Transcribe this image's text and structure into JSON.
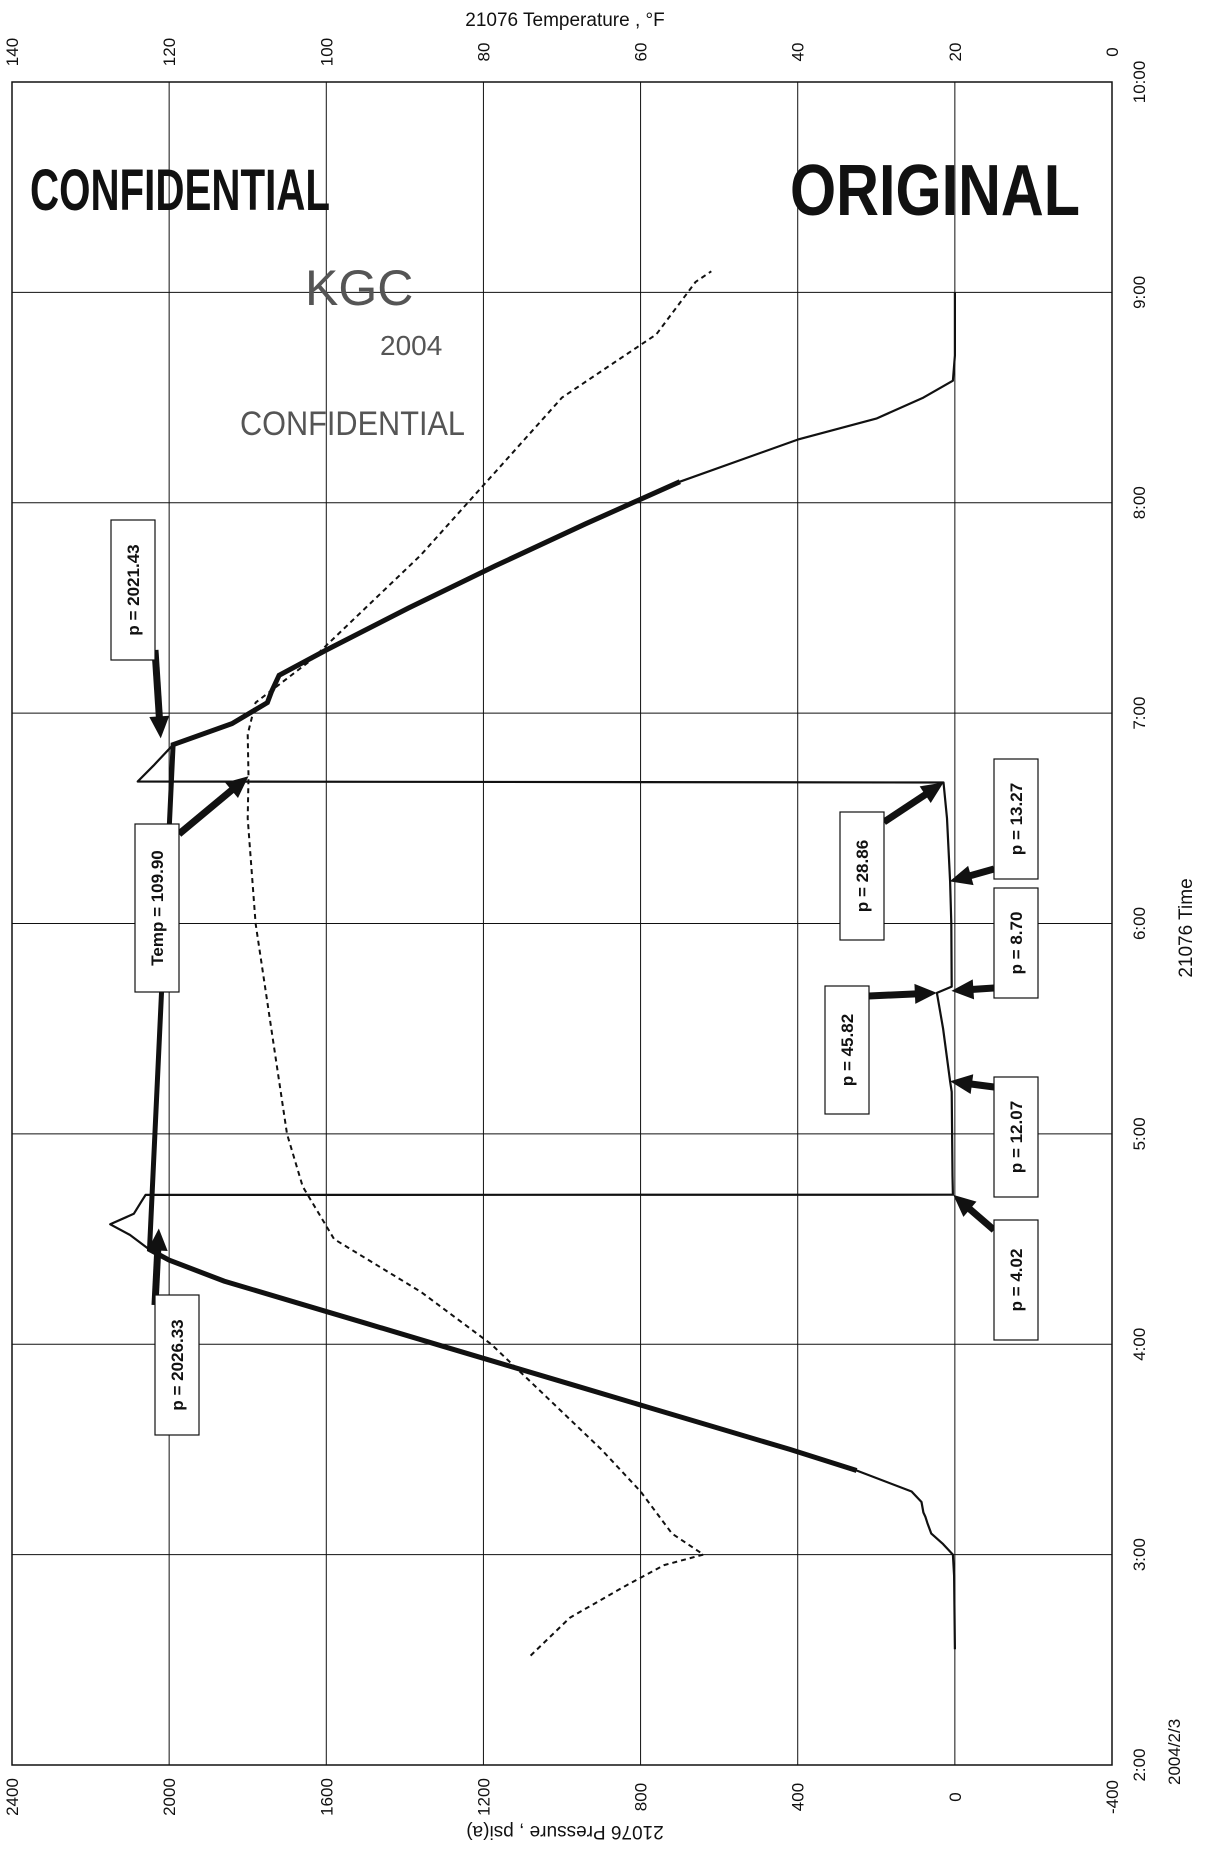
{
  "chart_data": {
    "type": "line",
    "orientation": "rotated-90",
    "x_axis": {
      "label": "21076 Time",
      "ticks": [
        "2:00",
        "3:00",
        "4:00",
        "5:00",
        "6:00",
        "7:00",
        "8:00",
        "9:00",
        "10:00"
      ],
      "start_date_label": "2004/2/3",
      "range": [
        2.0,
        10.0
      ]
    },
    "y_axis_pressure": {
      "label": "21076 Pressure , psi(a)",
      "ticks": [
        2400,
        2000,
        1600,
        1200,
        800,
        400,
        0,
        -400
      ],
      "range": [
        -400,
        2400
      ]
    },
    "y_axis_temperature": {
      "label": "21076 Temperature , °F",
      "ticks": [
        140,
        120,
        100,
        80,
        60,
        40,
        20,
        0
      ],
      "range": [
        0,
        140
      ]
    },
    "grid": true,
    "series": [
      {
        "axis": "pressure",
        "style": "solid",
        "points": [
          [
            2.55,
            0
          ],
          [
            2.9,
            2
          ],
          [
            3.0,
            5
          ],
          [
            3.05,
            30
          ],
          [
            3.1,
            60
          ],
          [
            3.15,
            70
          ],
          [
            3.18,
            75
          ],
          [
            3.2,
            80
          ],
          [
            3.25,
            85
          ],
          [
            3.3,
            110
          ],
          [
            3.4,
            250
          ],
          [
            3.5,
            420
          ],
          [
            3.6,
            600
          ],
          [
            3.7,
            780
          ],
          [
            3.8,
            960
          ],
          [
            3.9,
            1140
          ],
          [
            4.0,
            1320
          ],
          [
            4.1,
            1500
          ],
          [
            4.2,
            1680
          ],
          [
            4.3,
            1860
          ],
          [
            4.4,
            2000
          ],
          [
            4.45,
            2050
          ],
          [
            4.52,
            2100
          ],
          [
            4.57,
            2150
          ],
          [
            4.62,
            2090
          ],
          [
            4.68,
            2070
          ],
          [
            4.71,
            2060
          ],
          [
            4.711,
            5
          ],
          [
            4.8,
            6
          ],
          [
            5.0,
            7
          ],
          [
            5.2,
            8
          ],
          [
            5.25,
            12
          ],
          [
            5.5,
            30
          ],
          [
            5.67,
            45.82
          ],
          [
            5.7,
            8
          ],
          [
            6.0,
            9
          ],
          [
            6.2,
            12
          ],
          [
            6.5,
            20
          ],
          [
            6.67,
            28.86
          ],
          [
            6.675,
            2080
          ],
          [
            6.75,
            2040
          ],
          [
            6.85,
            1990
          ],
          [
            6.95,
            1840
          ],
          [
            7.05,
            1750
          ],
          [
            7.1,
            1740
          ],
          [
            7.18,
            1720
          ],
          [
            7.3,
            1600
          ],
          [
            7.5,
            1390
          ],
          [
            7.7,
            1170
          ],
          [
            7.9,
            940
          ],
          [
            8.1,
            700
          ],
          [
            8.3,
            400
          ],
          [
            8.4,
            200
          ],
          [
            8.5,
            80
          ],
          [
            8.58,
            5
          ],
          [
            8.7,
            0
          ],
          [
            9.0,
            0
          ]
        ]
      },
      {
        "axis": "temperature",
        "style": "dashed",
        "points": [
          [
            2.52,
            74
          ],
          [
            2.7,
            69
          ],
          [
            2.85,
            62
          ],
          [
            2.95,
            57
          ],
          [
            3.0,
            52
          ],
          [
            3.1,
            56
          ],
          [
            3.3,
            60
          ],
          [
            3.5,
            65
          ],
          [
            3.75,
            72
          ],
          [
            4.0,
            79
          ],
          [
            4.25,
            88
          ],
          [
            4.5,
            99
          ],
          [
            4.75,
            103
          ],
          [
            5.0,
            105
          ],
          [
            5.5,
            107
          ],
          [
            6.0,
            109
          ],
          [
            6.5,
            110
          ],
          [
            6.7,
            109.9
          ],
          [
            6.9,
            110
          ],
          [
            7.05,
            109
          ],
          [
            7.25,
            102
          ],
          [
            7.5,
            95
          ],
          [
            7.75,
            88
          ],
          [
            8.0,
            82
          ],
          [
            8.25,
            76
          ],
          [
            8.5,
            70
          ],
          [
            8.65,
            64
          ],
          [
            8.8,
            58
          ],
          [
            8.95,
            55
          ],
          [
            9.05,
            53
          ],
          [
            9.1,
            51
          ]
        ]
      }
    ],
    "annotations": [
      {
        "text": "p = 2021.43",
        "axis": "pressure",
        "x": 6.88,
        "y": 2021.43
      },
      {
        "text": "p = 2026.33",
        "axis": "pressure",
        "x": 4.55,
        "y": 2026.33
      },
      {
        "text": "Temp = 109.90",
        "axis": "temperature",
        "x": 6.7,
        "y": 109.9
      },
      {
        "text": "p = 4.02",
        "axis": "pressure",
        "x": 4.71,
        "y": 4.02
      },
      {
        "text": "p = 12.07",
        "axis": "pressure",
        "x": 5.25,
        "y": 12.07
      },
      {
        "text": "p = 45.82",
        "axis": "pressure",
        "x": 5.67,
        "y": 45.82
      },
      {
        "text": "p = 8.70",
        "axis": "pressure",
        "x": 5.68,
        "y": 8.7
      },
      {
        "text": "p = 28.86",
        "axis": "pressure",
        "x": 6.67,
        "y": 28.86
      },
      {
        "text": "p = 13.27",
        "axis": "pressure",
        "x": 6.2,
        "y": 13.27
      }
    ]
  },
  "stamps": {
    "confidential_top": "CONFIDENTIAL",
    "original": "ORIGINAL",
    "kgc": "KGC",
    "date": "2004",
    "confidential_lower": "CONFIDENTIAL"
  }
}
